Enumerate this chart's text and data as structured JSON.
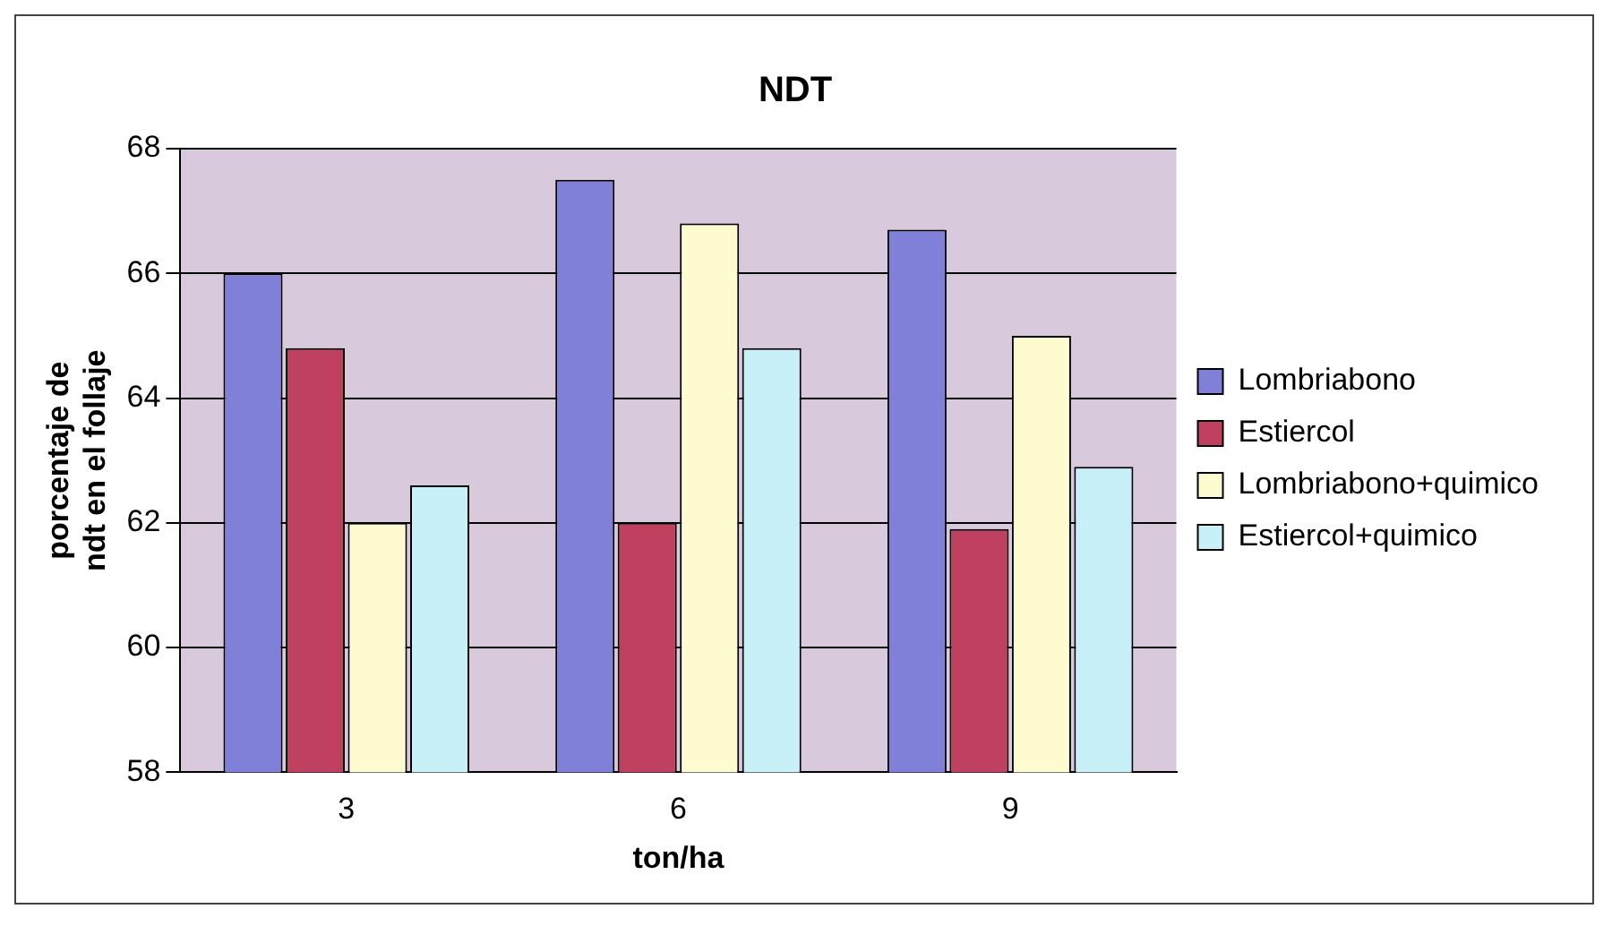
{
  "chart_data": {
    "type": "bar",
    "title": "NDT",
    "xlabel": "ton/ha",
    "ylabel": "porcentaje de ndt en el follaje",
    "categories": [
      "3",
      "6",
      "9"
    ],
    "series": [
      {
        "name": "Lombriabono",
        "color": "#8080d8",
        "values": [
          66.0,
          67.5,
          66.7
        ]
      },
      {
        "name": "Estiercol",
        "color": "#c04060",
        "values": [
          64.8,
          62.0,
          61.9
        ]
      },
      {
        "name": "Lombriabono+quimico",
        "color": "#fffbd0",
        "values": [
          62.0,
          66.8,
          65.0
        ]
      },
      {
        "name": "Estiercol+quimico",
        "color": "#c8f0f8",
        "values": [
          62.6,
          64.8,
          62.9
        ]
      }
    ],
    "ylim": [
      58,
      68
    ],
    "yticks": [
      58,
      60,
      62,
      64,
      66,
      68
    ],
    "grid": "y",
    "legend": "right"
  }
}
